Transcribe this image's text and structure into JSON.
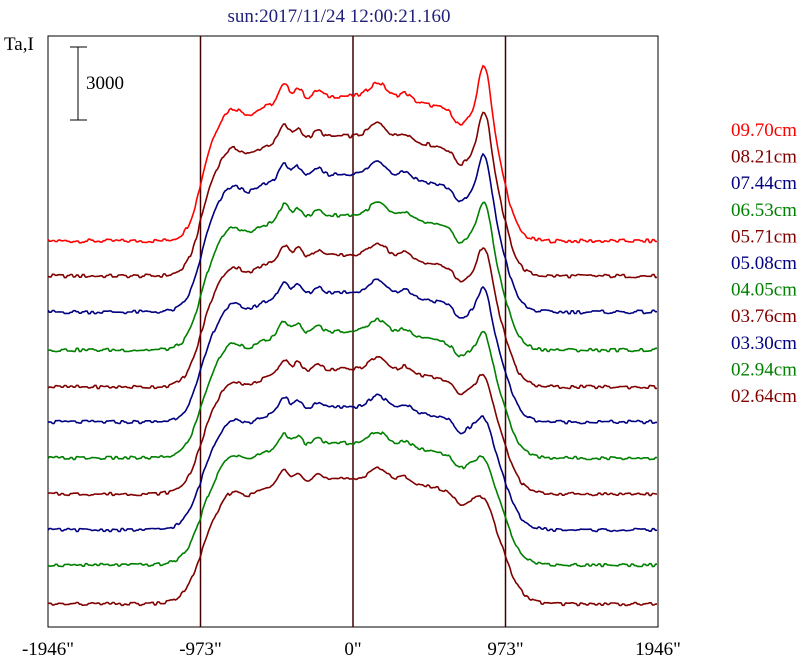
{
  "chart_data": {
    "type": "line",
    "title": "sun:2017/11/24 12:00:21.160",
    "ylabel": "Ta,I",
    "scale_bar_label": "3000",
    "x_ticks": [
      "-1946\"",
      "-973\"",
      "0\"",
      "973\"",
      "1946\""
    ],
    "x_tick_values": [
      -1946,
      -973,
      0,
      973,
      1946
    ],
    "xlim": [
      -1946,
      1946
    ],
    "vertical_markers": [
      -973,
      0,
      973
    ],
    "series": [
      {
        "name": "09.70cm",
        "color": "#ff0000"
      },
      {
        "name": "08.21cm",
        "color": "#800000"
      },
      {
        "name": "07.44cm",
        "color": "#000080"
      },
      {
        "name": "06.53cm",
        "color": "#008000"
      },
      {
        "name": "05.71cm",
        "color": "#800000"
      },
      {
        "name": "05.08cm",
        "color": "#000080"
      },
      {
        "name": "04.05cm",
        "color": "#008000"
      },
      {
        "name": "03.76cm",
        "color": "#800000"
      },
      {
        "name": "03.30cm",
        "color": "#000080"
      },
      {
        "name": "02.94cm",
        "color": "#008000"
      },
      {
        "name": "02.64cm",
        "color": "#800000"
      }
    ]
  }
}
